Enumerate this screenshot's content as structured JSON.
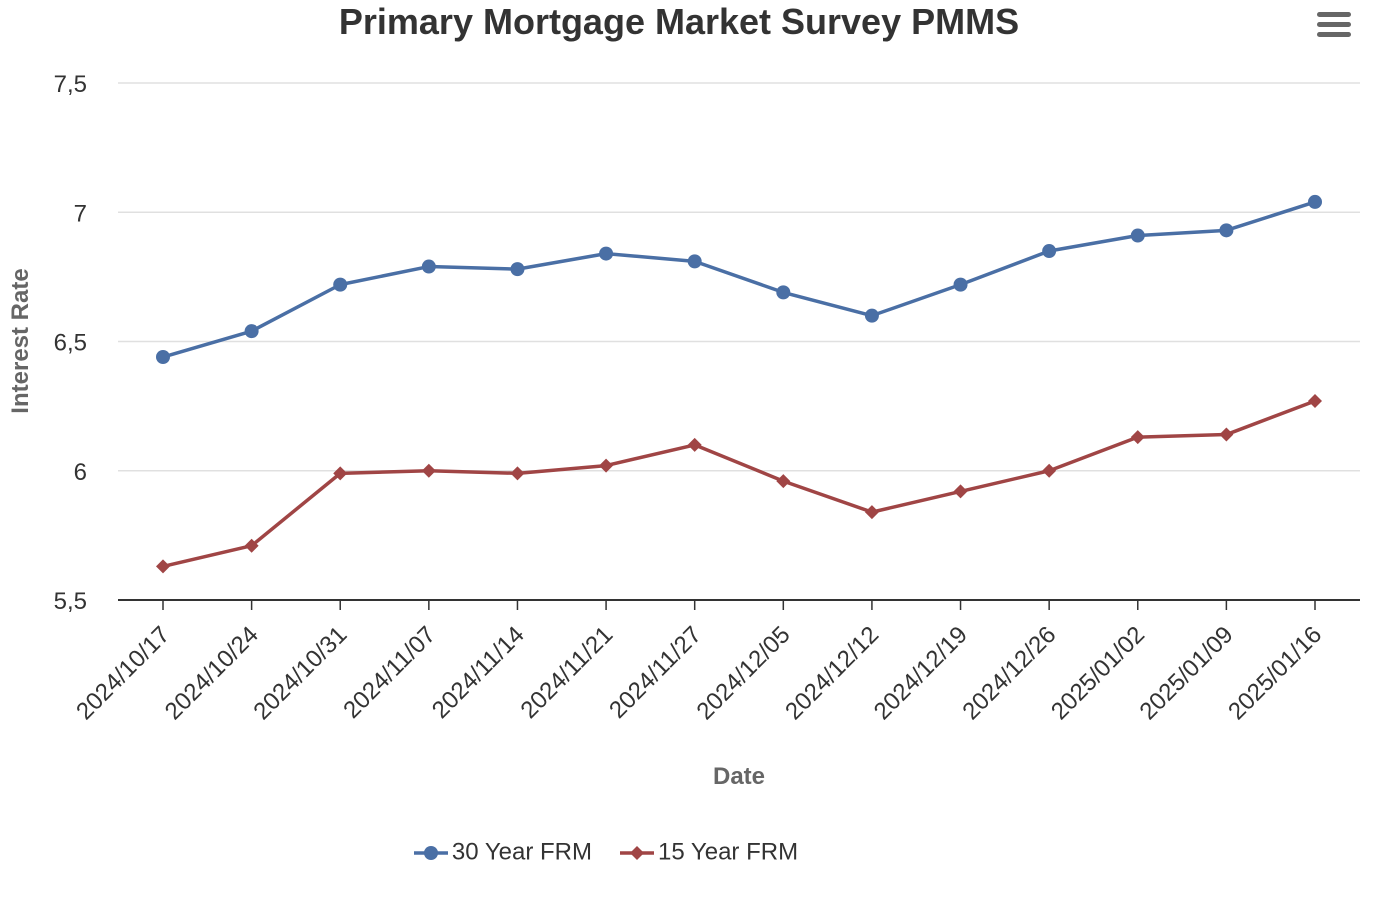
{
  "chart_data": {
    "type": "line",
    "title": "Primary Mortgage Market Survey PMMS",
    "xlabel": "Date",
    "ylabel": "Interest Rate",
    "categories": [
      "2024/10/17",
      "2024/10/24",
      "2024/10/31",
      "2024/11/07",
      "2024/11/14",
      "2024/11/21",
      "2024/11/27",
      "2024/12/05",
      "2024/12/12",
      "2024/12/19",
      "2024/12/26",
      "2025/01/02",
      "2025/01/09",
      "2025/01/16"
    ],
    "ylim": [
      5.5,
      7.5
    ],
    "yticks": [
      "5,5",
      "6",
      "6,5",
      "7",
      "7,5"
    ],
    "ytick_values": [
      5.5,
      6,
      6.5,
      7,
      7.5
    ],
    "grid": true,
    "legend_position": "bottom",
    "series": [
      {
        "name": "30 Year FRM",
        "color": "#4a6fa5",
        "marker": "circle",
        "values": [
          6.44,
          6.54,
          6.72,
          6.79,
          6.78,
          6.84,
          6.81,
          6.69,
          6.6,
          6.72,
          6.85,
          6.91,
          6.93,
          7.04
        ]
      },
      {
        "name": "15 Year FRM",
        "color": "#a04545",
        "marker": "diamond",
        "values": [
          5.63,
          5.71,
          5.99,
          6.0,
          5.99,
          6.02,
          6.1,
          5.96,
          5.84,
          5.92,
          6.0,
          6.13,
          6.14,
          6.27
        ]
      }
    ]
  }
}
